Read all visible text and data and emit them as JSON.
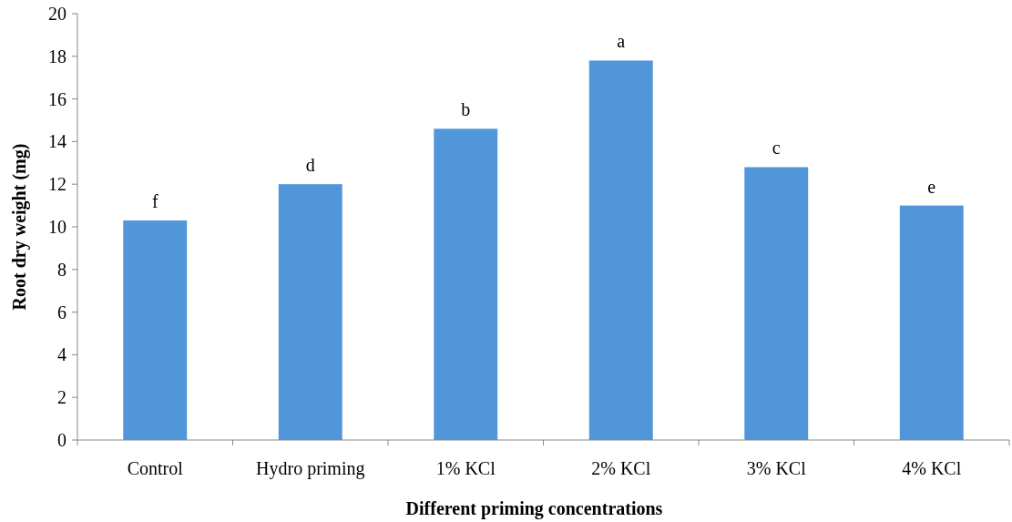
{
  "chart_data": {
    "type": "bar",
    "xlabel": "Different priming concentrations",
    "ylabel": "Root dry weight (mg)",
    "categories": [
      "Control",
      "Hydro priming",
      "1% KCl",
      "2% KCl",
      "3% KCl",
      "4% KCl"
    ],
    "values": [
      10.3,
      12.0,
      14.6,
      17.8,
      12.8,
      11.0
    ],
    "color": "#5096d8",
    "ylim": [
      0,
      20
    ],
    "yticks": [
      0,
      2,
      4,
      6,
      8,
      10,
      12,
      14,
      16,
      18,
      20
    ],
    "annotations": [
      {
        "text": "f",
        "x": "Control",
        "y": 10.3
      },
      {
        "text": "d",
        "x": "Hydro priming",
        "y": 12.0
      },
      {
        "text": "b",
        "x": "1% KCl",
        "y": 14.6
      },
      {
        "text": "a",
        "x": "2% KCl",
        "y": 17.8
      },
      {
        "text": "c",
        "x": "3% KCl",
        "y": 12.8
      },
      {
        "text": "e",
        "x": "4% KCl",
        "y": 11.0
      }
    ]
  }
}
